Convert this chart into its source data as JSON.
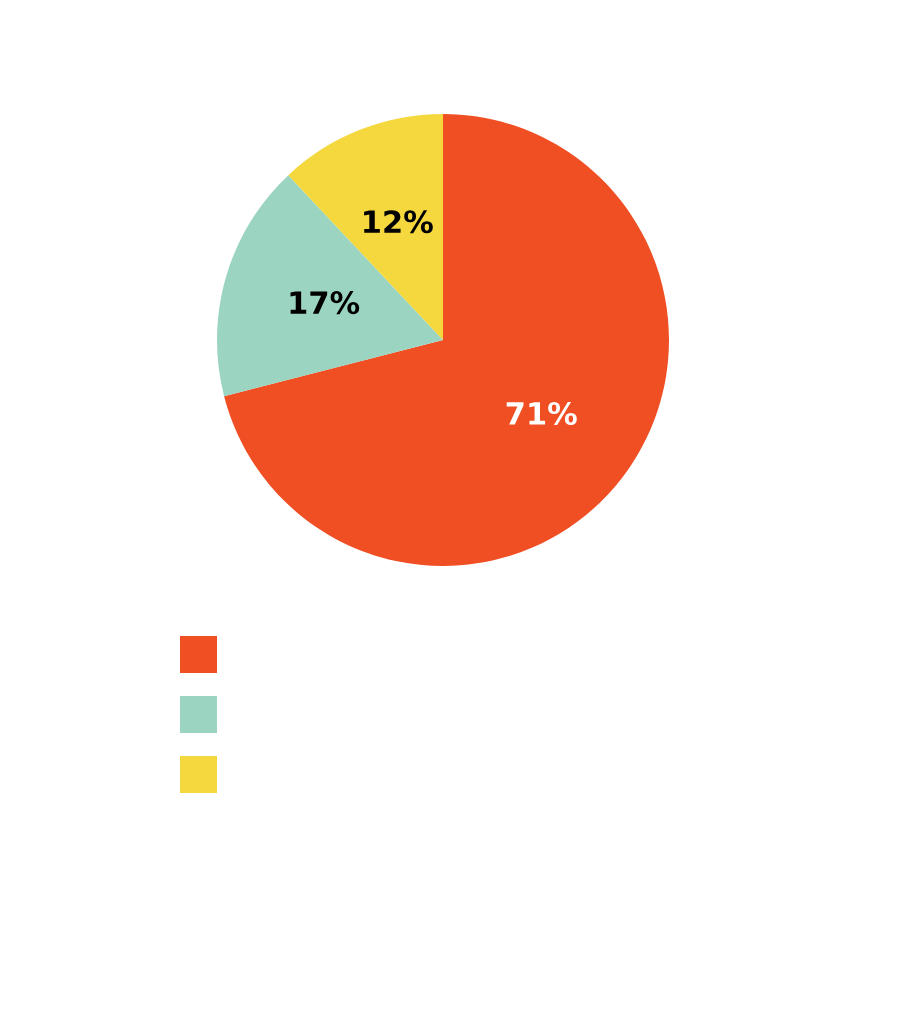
{
  "chart_data": {
    "type": "pie",
    "categories": [
      null,
      null,
      null
    ],
    "values": [
      71,
      17,
      12
    ],
    "colors": [
      "#f04e23",
      "#9bd5c1",
      "#f4d83d"
    ],
    "value_labels": [
      "71%",
      "17%",
      "12%"
    ]
  }
}
